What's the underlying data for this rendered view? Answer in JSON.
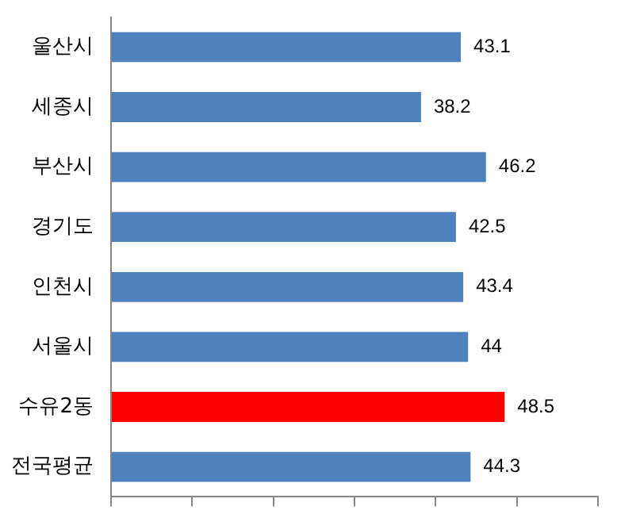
{
  "chart_data": {
    "type": "bar",
    "orientation": "horizontal",
    "categories": [
      "울산시",
      "세종시",
      "부산시",
      "경기도",
      "인천시",
      "서울시",
      "수유2동",
      "전국평균"
    ],
    "values": [
      43.1,
      38.2,
      46.2,
      42.5,
      43.4,
      44,
      48.5,
      44.3
    ],
    "colors": [
      "#4f81bd",
      "#4f81bd",
      "#4f81bd",
      "#4f81bd",
      "#4f81bd",
      "#4f81bd",
      "#ff0000",
      "#4f81bd"
    ],
    "xlim": [
      0,
      60
    ],
    "xticks": [
      {
        "value": 0,
        "label": null
      },
      {
        "value": 10,
        "label": null
      },
      {
        "value": 20,
        "label": null
      },
      {
        "value": 30,
        "label": null
      },
      {
        "value": 40,
        "label": null
      },
      {
        "value": 50,
        "label": null
      },
      {
        "value": 60,
        "label": null
      }
    ],
    "tick_labels": "y",
    "data_labels": true,
    "legend": false,
    "grid": false
  }
}
